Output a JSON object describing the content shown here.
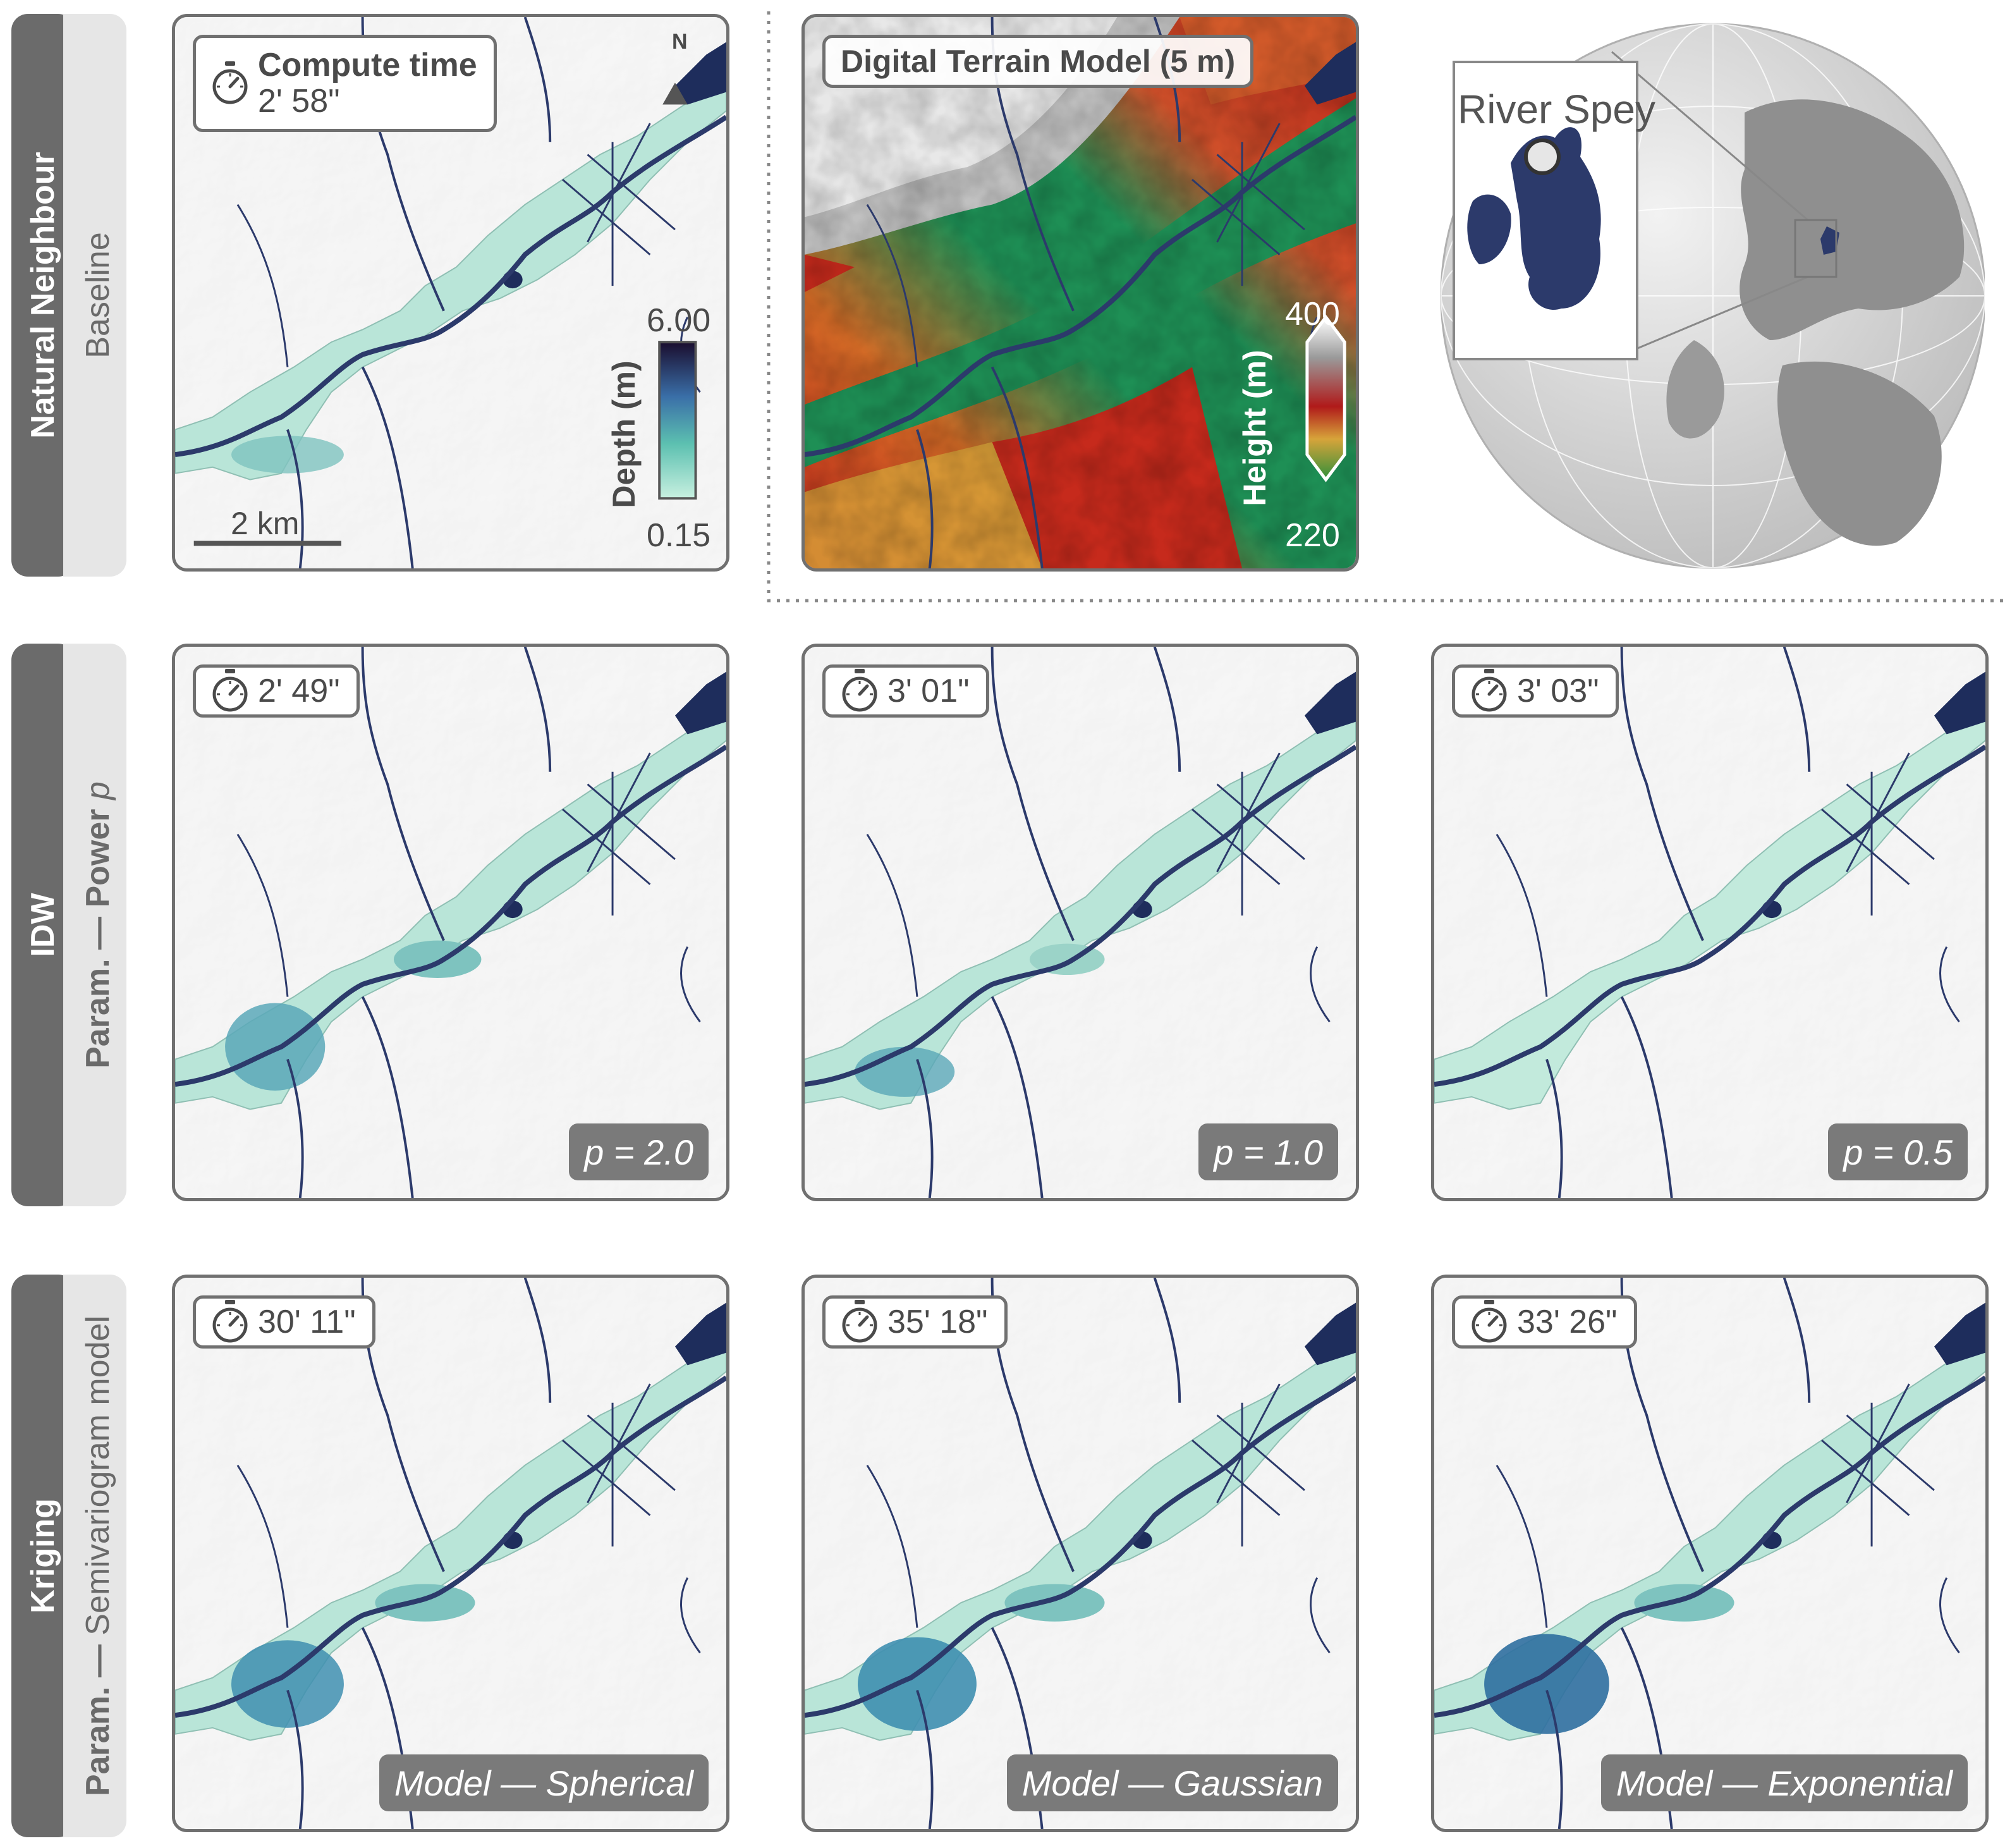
{
  "rows": [
    {
      "method": "Natural Neighbour",
      "subtitle": "Baseline"
    },
    {
      "method": "IDW",
      "subtitle_prefix": "Param. — Power ",
      "subtitle_param": "p"
    },
    {
      "method": "Kriging",
      "subtitle_prefix": "Param. — ",
      "subtitle_param": "Semivariogram model"
    }
  ],
  "baseline_panel": {
    "time_title": "Compute time",
    "time_value": "2' 58\"",
    "north": "N",
    "scale_bar": "2 km",
    "legend": {
      "title": "Depth (m)",
      "max": "6.00",
      "min": "0.15"
    }
  },
  "dtm_panel": {
    "title": "Digital Terrain Model (5 m)",
    "legend": {
      "title": "Height (m)",
      "max": "400",
      "min": "220"
    }
  },
  "inset": {
    "label": "River Spey"
  },
  "idw_panels": [
    {
      "time": "2' 49\"",
      "param": "p = 2.0"
    },
    {
      "time": "3' 01\"",
      "param": "p = 1.0"
    },
    {
      "time": "3' 03\"",
      "param": "p = 0.5"
    }
  ],
  "kriging_panels": [
    {
      "time": "30' 11\"",
      "param": "Model — Spherical"
    },
    {
      "time": "35' 18\"",
      "param": "Model — Gaussian"
    },
    {
      "time": "33' 26\"",
      "param": "Model — Exponential"
    }
  ],
  "colors": {
    "flood_light": "#b9e5d8",
    "flood_mid": "#7ec3bf",
    "flood_deep": "#3f8fb0",
    "water": "#1e2d5c",
    "river": "#2c3a6b",
    "frame": "#707070",
    "label_dark": "#6b6b6b",
    "label_light": "#e6e6e6"
  }
}
